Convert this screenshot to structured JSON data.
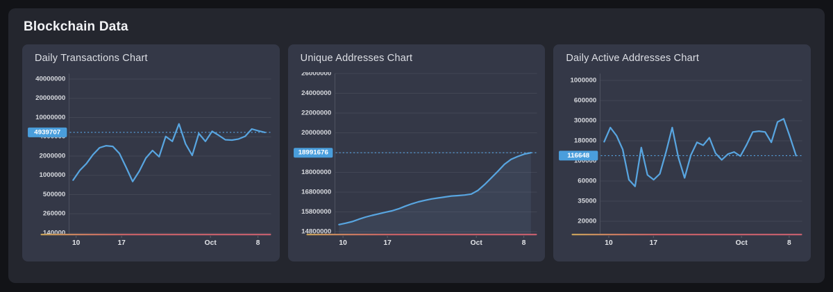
{
  "page": {
    "title": "Blockchain Data"
  },
  "colors": {
    "line": "#58a5e0",
    "badge_bg": "#4a9edc",
    "badge_text": "#ffffff",
    "dotted_line": "#5aa8e8",
    "area_fill": "rgba(130,170,215,0.10)",
    "axis_gradient": [
      "#c7a35b",
      "#c97d60",
      "#c56066",
      "#c45f6e"
    ],
    "gridline": "rgba(255,255,255,0.07)",
    "axis_line": "#4e5260",
    "y_label": "#d6d8dd",
    "x_label": "#e3e5e9"
  },
  "chart_data": [
    {
      "type": "line",
      "title": "Daily Transactions Chart",
      "current_value_label": "4939707",
      "current_value": 4939707,
      "area": false,
      "y_ticks": [
        {
          "value": 140000,
          "label": "140000"
        },
        {
          "value": 260000,
          "label": "260000"
        },
        {
          "value": 500000,
          "label": "500000"
        },
        {
          "value": 1000000,
          "label": "1000000"
        },
        {
          "value": 2000000,
          "label": "2000000"
        },
        {
          "value": 4000000,
          "label": "4000000"
        },
        {
          "value": 10000000,
          "label": "10000000"
        },
        {
          "value": 20000000,
          "label": "20000000"
        },
        {
          "value": 40000000,
          "label": "40000000"
        }
      ],
      "x_ticks": [
        {
          "label": "10",
          "position": 0.035
        },
        {
          "label": "17",
          "position": 0.26
        },
        {
          "label": "Oct",
          "position": 0.7
        },
        {
          "label": "8",
          "position": 0.935
        }
      ],
      "values": [
        840000,
        1190000,
        1520000,
        2100000,
        2700000,
        2900000,
        2830000,
        2200000,
        1340000,
        800000,
        1160000,
        1860000,
        2440000,
        1950000,
        4070000,
        3400000,
        7400000,
        3100000,
        2050000,
        4700000,
        3400000,
        5200000,
        4300000,
        3600000,
        3550000,
        3700000,
        4100000,
        5800000,
        5300000,
        4939707
      ]
    },
    {
      "type": "line",
      "title": "Unique Addresses Chart",
      "current_value_label": "18991676",
      "current_value": 18991676,
      "area": true,
      "y_ticks": [
        {
          "value": 14800000,
          "label": "14800000"
        },
        {
          "value": 15800000,
          "label": "15800000"
        },
        {
          "value": 16800000,
          "label": "16800000"
        },
        {
          "value": 18000000,
          "label": "18000000"
        },
        {
          "value": 19000000,
          "label": ""
        },
        {
          "value": 20000000,
          "label": "20000000"
        },
        {
          "value": 22000000,
          "label": "22000000"
        },
        {
          "value": 24000000,
          "label": "24000000"
        },
        {
          "value": 26000000,
          "label": "26000000"
        }
      ],
      "x_ticks": [
        {
          "label": "10",
          "position": 0.04
        },
        {
          "label": "17",
          "position": 0.26
        },
        {
          "label": "Oct",
          "position": 0.7
        },
        {
          "label": "8",
          "position": 0.935
        }
      ],
      "values": [
        15150000,
        15220000,
        15300000,
        15420000,
        15530000,
        15620000,
        15700000,
        15780000,
        15850000,
        15950000,
        16080000,
        16200000,
        16300000,
        16380000,
        16450000,
        16500000,
        16550000,
        16600000,
        16620000,
        16650000,
        16700000,
        16900000,
        17250000,
        17650000,
        18050000,
        18400000,
        18650000,
        18800000,
        18920000,
        18991676
      ]
    },
    {
      "type": "line",
      "title": "Daily Active Addresses Chart",
      "current_value_label": "116648",
      "current_value": 116648,
      "area": false,
      "y_ticks": [
        {
          "value": 20000,
          "label": "20000"
        },
        {
          "value": 35000,
          "label": "35000"
        },
        {
          "value": 60000,
          "label": "60000"
        },
        {
          "value": 100000,
          "label": "100000"
        },
        {
          "value": 180000,
          "label": "180000"
        },
        {
          "value": 300000,
          "label": "300000"
        },
        {
          "value": 600000,
          "label": "600000"
        },
        {
          "value": 1000000,
          "label": "1000000"
        }
      ],
      "x_ticks": [
        {
          "label": "10",
          "position": 0.043
        },
        {
          "label": "17",
          "position": 0.264
        },
        {
          "label": "Oct",
          "position": 0.7
        },
        {
          "label": "8",
          "position": 0.936
        }
      ],
      "values": [
        175000,
        252000,
        205000,
        140000,
        62000,
        52000,
        148000,
        70000,
        62000,
        72000,
        130000,
        252000,
        110000,
        65000,
        118000,
        172000,
        158000,
        195000,
        125000,
        103000,
        122000,
        130000,
        115000,
        160000,
        225000,
        230000,
        225000,
        172000,
        290000,
        320000,
        200000,
        116648
      ]
    }
  ]
}
